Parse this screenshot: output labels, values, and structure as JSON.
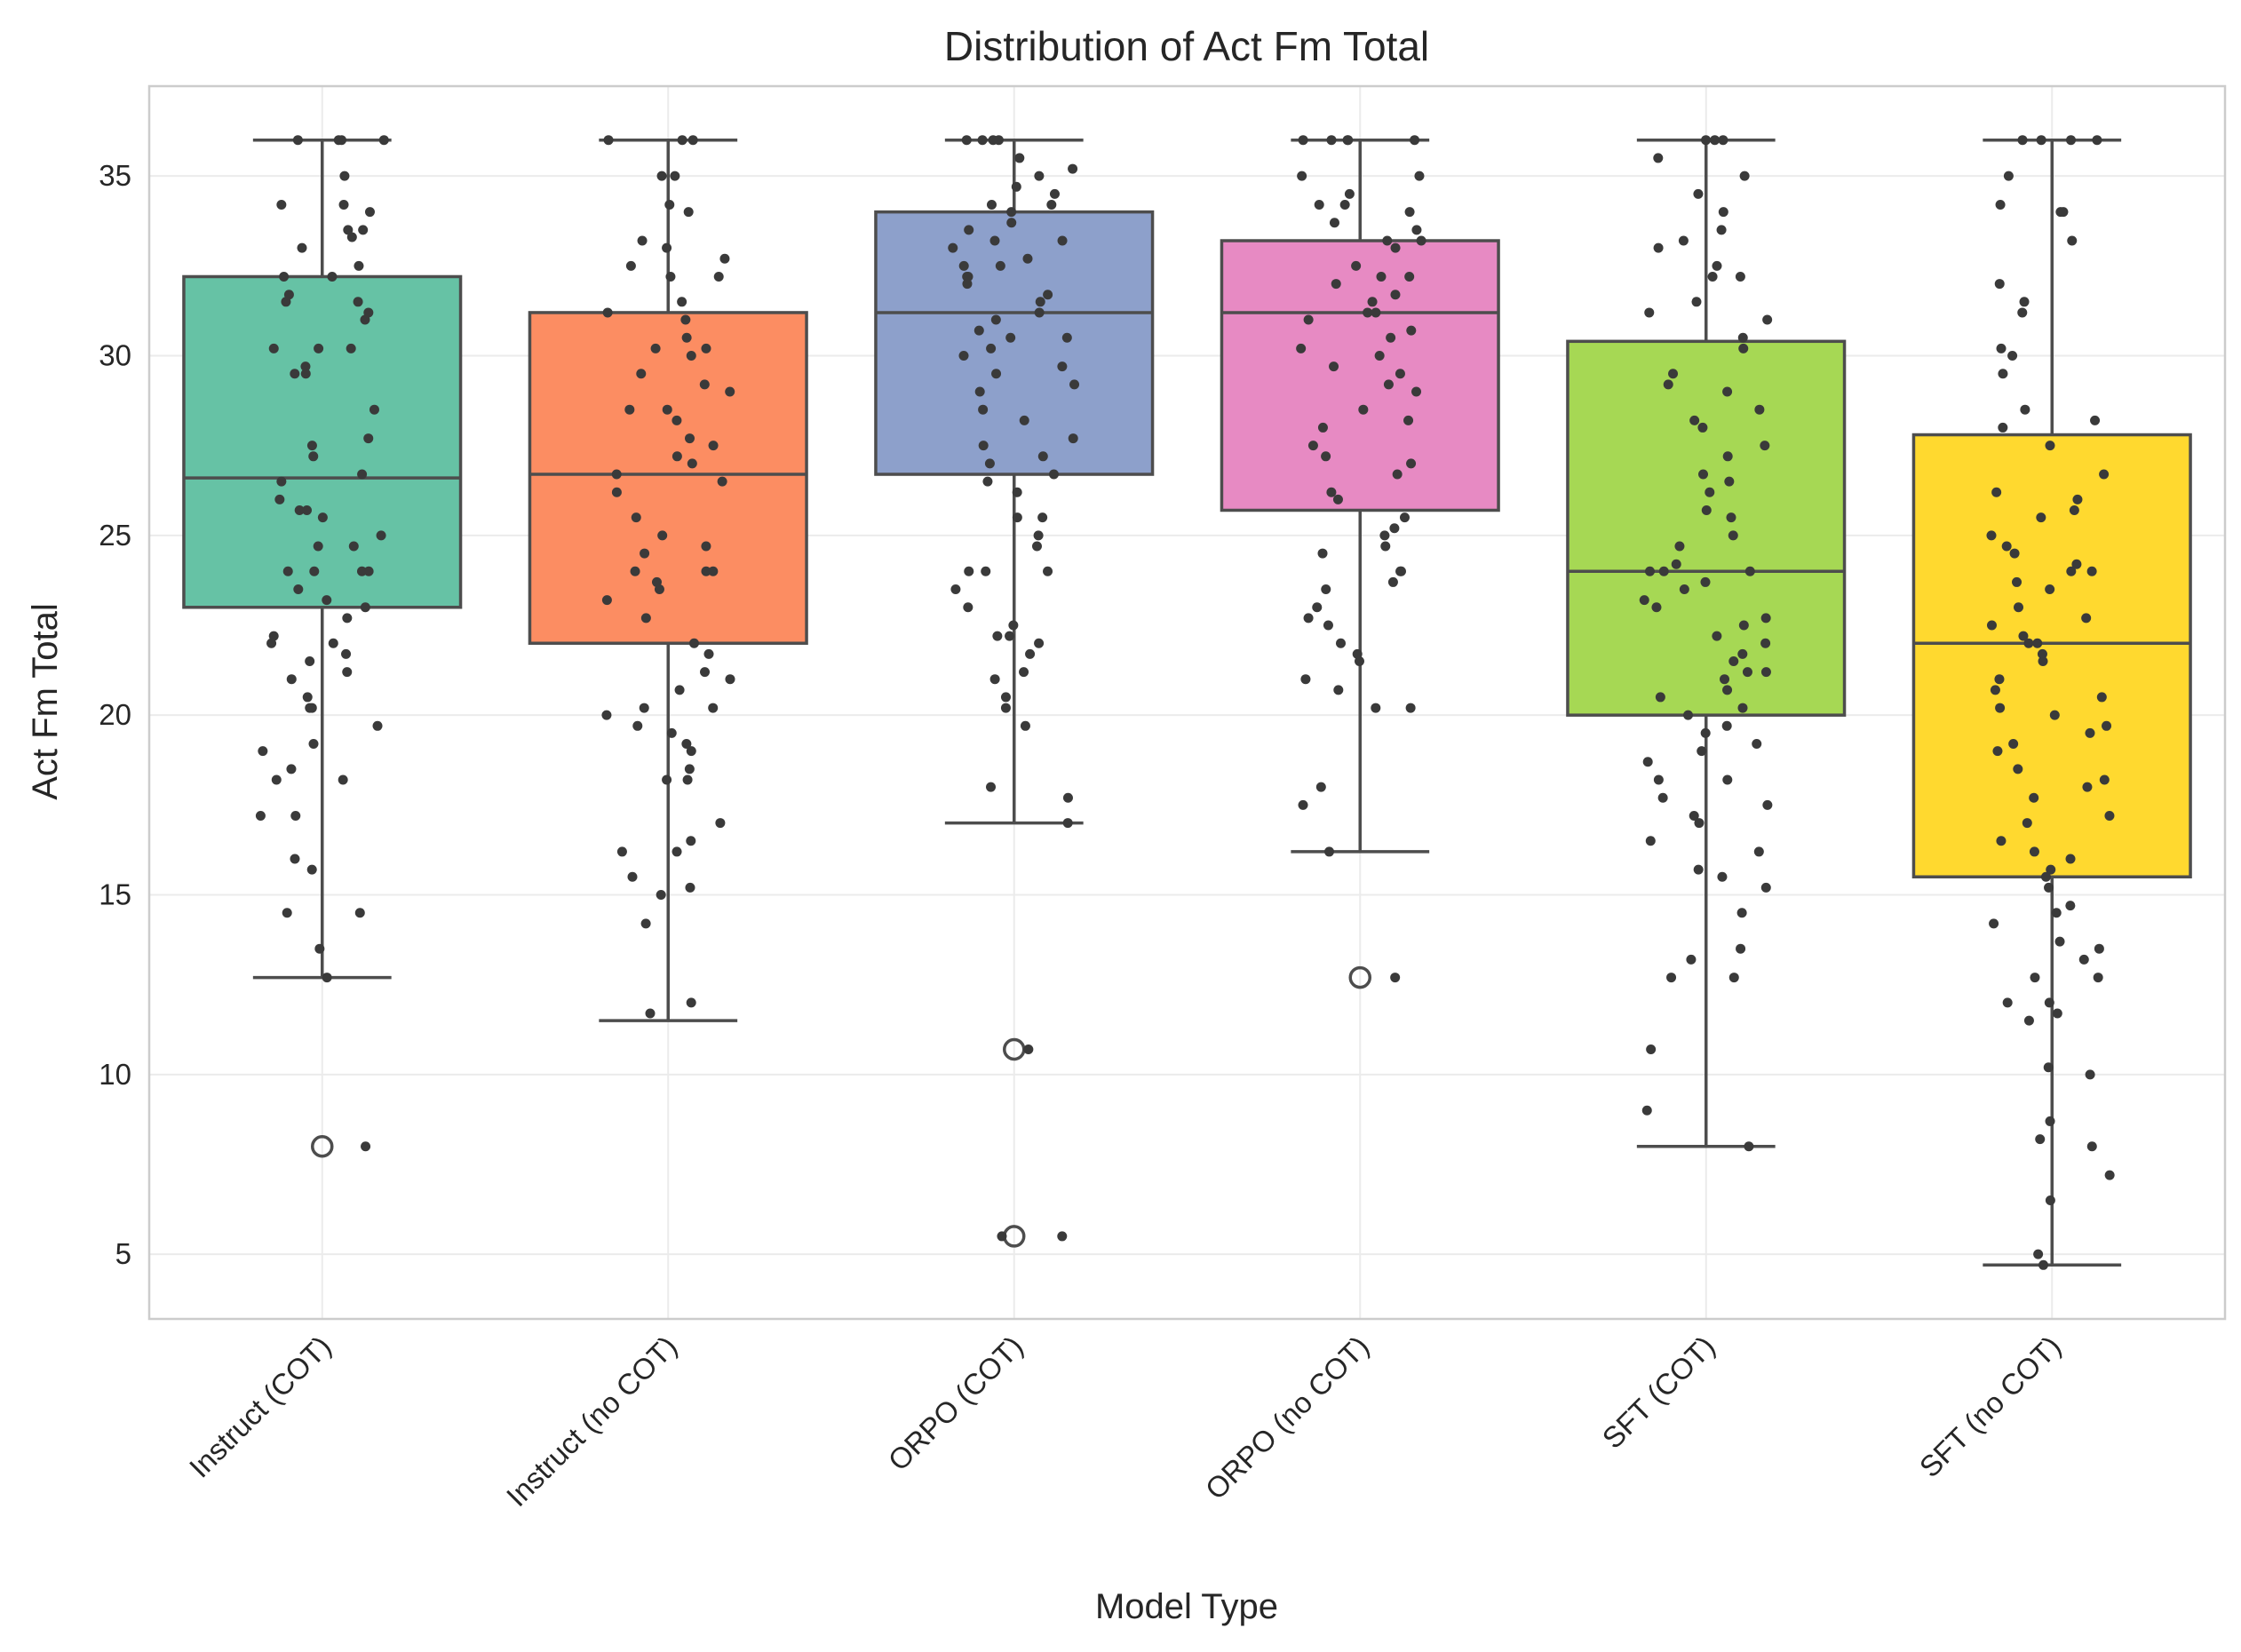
{
  "chart_data": {
    "type": "box",
    "title": "Distribution of Act Fm Total",
    "xlabel": "Model Type",
    "ylabel": "Act Fm Total",
    "ylim": [
      3.2,
      37.5
    ],
    "yticks": [
      5,
      10,
      15,
      20,
      25,
      30,
      35
    ],
    "grid": true,
    "legend": "none",
    "categories": [
      "Instruct (COT)",
      "Instruct (no COT)",
      "ORPO (COT)",
      "ORPO (no COT)",
      "SFT (COT)",
      "SFT (no COT)"
    ],
    "series": [
      {
        "category": "Instruct (COT)",
        "color": "#66c2a5",
        "q1": 23.0,
        "median": 26.6,
        "q3": 32.2,
        "whisker_low": 12.7,
        "whisker_high": 36.0,
        "outliers": [
          8.0
        ],
        "points": [
          36,
          36,
          36,
          36,
          35,
          34.2,
          34.2,
          34.0,
          33.5,
          33.5,
          33.3,
          33.0,
          32.5,
          32.2,
          32.2,
          31.7,
          31.5,
          31.5,
          31.2,
          31.0,
          30.2,
          30.2,
          30.2,
          29.7,
          29.5,
          29.5,
          28.5,
          27.7,
          27.5,
          27.2,
          26.7,
          26.5,
          26.0,
          25.7,
          25.7,
          25.5,
          25.0,
          24.7,
          24.7,
          24.0,
          24.0,
          24.0,
          24.0,
          23.5,
          23.2,
          23.0,
          22.7,
          22.2,
          22.0,
          22.0,
          21.7,
          21.5,
          21.2,
          21.0,
          20.5,
          20.2,
          20.2,
          19.7,
          19.2,
          19.0,
          18.5,
          18.2,
          18.2,
          17.2,
          17.2,
          16.0,
          15.7,
          14.5,
          14.5,
          13.5,
          12.7,
          8.0
        ]
      },
      {
        "category": "Instruct (no COT)",
        "color": "#fc8d62",
        "q1": 22.0,
        "median": 26.7,
        "q3": 31.2,
        "whisker_low": 11.5,
        "whisker_high": 36.0,
        "outliers": [],
        "points": [
          36,
          36,
          36,
          35,
          35,
          34.2,
          34.0,
          33.2,
          33.0,
          32.7,
          32.5,
          32.2,
          32.2,
          31.5,
          31.2,
          31.0,
          30.5,
          30.2,
          30.2,
          30.0,
          29.5,
          29.2,
          29.0,
          28.5,
          28.5,
          28.2,
          27.7,
          27.5,
          27.2,
          27.0,
          26.7,
          26.5,
          26.2,
          25.5,
          25.0,
          24.7,
          24.5,
          24.0,
          24.0,
          24.0,
          23.7,
          23.5,
          23.2,
          22.7,
          22.0,
          21.7,
          21.2,
          21.0,
          20.7,
          20.2,
          20.2,
          20.0,
          19.7,
          19.5,
          19.2,
          19.0,
          18.5,
          18.2,
          18.2,
          17.0,
          16.5,
          16.2,
          16.2,
          15.5,
          15.2,
          15.0,
          14.2,
          12.0,
          11.7
        ]
      },
      {
        "category": "ORPO (COT)",
        "color": "#8da0cb",
        "q1": 26.7,
        "median": 31.2,
        "q3": 34.0,
        "whisker_low": 17.0,
        "whisker_high": 36.0,
        "outliers": [
          10.7,
          5.5
        ],
        "points": [
          36,
          36,
          36,
          36,
          35.5,
          35.2,
          35.0,
          34.7,
          34.5,
          34.2,
          34.2,
          34.0,
          33.7,
          33.5,
          33.2,
          33.2,
          33.0,
          32.7,
          32.5,
          32.5,
          32.2,
          32.2,
          32.0,
          31.7,
          31.5,
          31.2,
          31.0,
          30.7,
          30.5,
          30.5,
          30.2,
          30.0,
          29.7,
          29.5,
          29.2,
          29.0,
          28.5,
          28.2,
          27.7,
          27.5,
          27.2,
          27.0,
          26.7,
          26.5,
          26.2,
          25.5,
          25.5,
          25.0,
          24.7,
          24.0,
          24.0,
          24.0,
          23.5,
          23.0,
          22.5,
          22.2,
          22.2,
          22.0,
          21.7,
          21.2,
          21.0,
          20.5,
          20.2,
          19.7,
          18.0,
          17.7,
          17.0,
          10.7,
          5.5,
          5.5
        ]
      },
      {
        "category": "ORPO (no COT)",
        "color": "#e78ac3",
        "q1": 25.7,
        "median": 31.2,
        "q3": 33.2,
        "whisker_low": 16.2,
        "whisker_high": 36.0,
        "outliers": [
          12.7
        ],
        "points": [
          36,
          36,
          36,
          36,
          36,
          35,
          35,
          34.5,
          34.2,
          34.2,
          34.0,
          33.7,
          33.5,
          33.2,
          33.2,
          33.0,
          32.5,
          32.2,
          32.2,
          32.0,
          31.7,
          31.5,
          31.2,
          31.2,
          31.0,
          30.7,
          30.5,
          30.2,
          30.0,
          29.7,
          29.5,
          29.2,
          29.0,
          28.5,
          28.2,
          28.0,
          27.5,
          27.2,
          27.0,
          26.7,
          26.2,
          26.0,
          25.5,
          25.2,
          25.0,
          24.7,
          24.5,
          24.0,
          24.0,
          23.7,
          23.5,
          23.0,
          22.7,
          22.5,
          22.0,
          21.7,
          21.5,
          21.0,
          20.7,
          20.2,
          20.2,
          18.0,
          17.5,
          16.2,
          12.7
        ]
      },
      {
        "category": "SFT (COT)",
        "color": "#a6d854",
        "q1": 20.0,
        "median": 24.0,
        "q3": 30.4,
        "whisker_low": 8.0,
        "whisker_high": 36.0,
        "outliers": [],
        "points": [
          36,
          36,
          36,
          35.5,
          35,
          34.5,
          34.0,
          33.5,
          33.2,
          33.0,
          32.5,
          32.2,
          32.2,
          31.5,
          31.2,
          31.0,
          30.5,
          30.2,
          29.5,
          29.2,
          29.0,
          28.5,
          28.2,
          28.0,
          27.5,
          27.2,
          26.7,
          26.5,
          26.2,
          25.7,
          25.5,
          25.0,
          24.7,
          24.2,
          24.0,
          24.0,
          24.0,
          23.7,
          23.5,
          23.2,
          23.0,
          22.7,
          22.5,
          22.2,
          22.0,
          21.7,
          21.5,
          21.2,
          21.2,
          21.0,
          20.7,
          20.5,
          20.2,
          20.0,
          19.7,
          19.5,
          19.2,
          19.0,
          18.7,
          18.2,
          18.2,
          17.7,
          17.5,
          17.2,
          17.0,
          16.5,
          16.2,
          15.7,
          15.5,
          15.2,
          14.5,
          13.5,
          13.2,
          12.7,
          12.7,
          10.7,
          9.0,
          8.0
        ]
      },
      {
        "category": "SFT (no COT)",
        "color": "#ffd92f",
        "q1": 15.5,
        "median": 22.0,
        "q3": 27.8,
        "whisker_low": 4.7,
        "whisker_high": 36.0,
        "outliers": [],
        "points": [
          36,
          36,
          36,
          36,
          35,
          34.2,
          34.0,
          34.0,
          33.2,
          32.0,
          31.5,
          31.2,
          30.2,
          30.0,
          29.5,
          28.5,
          28.2,
          28.0,
          27.5,
          26.7,
          26.2,
          26.0,
          25.7,
          25.5,
          25.0,
          24.7,
          24.5,
          24.2,
          24.0,
          24.0,
          23.7,
          23.5,
          23.0,
          22.7,
          22.5,
          22.2,
          22.0,
          22.0,
          21.7,
          21.5,
          21.0,
          20.7,
          20.5,
          20.2,
          20.0,
          19.7,
          19.5,
          19.2,
          19.0,
          18.5,
          18.2,
          18.0,
          17.7,
          17.2,
          17.0,
          16.5,
          16.2,
          16.0,
          15.7,
          15.5,
          15.2,
          14.7,
          14.5,
          14.2,
          13.7,
          13.5,
          13.2,
          12.7,
          12.7,
          12.0,
          12.0,
          11.7,
          11.5,
          10.2,
          10.0,
          8.7,
          8.2,
          8.0,
          7.2,
          6.5,
          5.0,
          4.7
        ]
      }
    ]
  }
}
